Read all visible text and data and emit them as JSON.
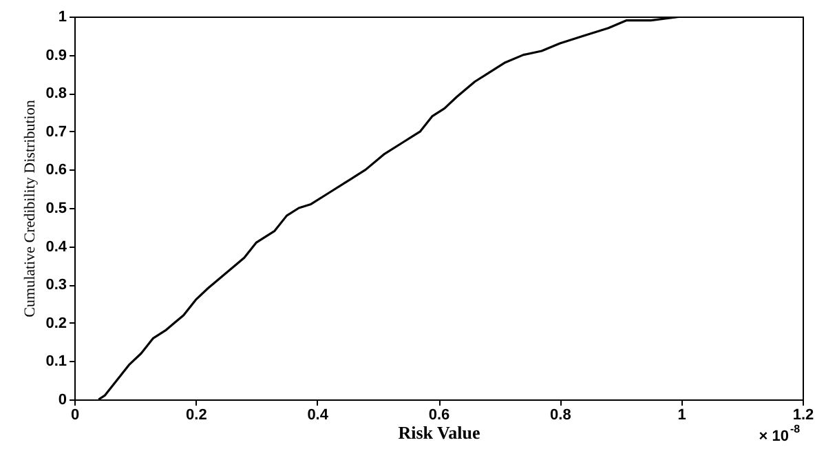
{
  "chart_data": {
    "type": "line",
    "xlabel": "Risk Value",
    "ylabel": "Cumulative Credibility Distribution",
    "annotations": [
      "× 10$^{-8}$"
    ],
    "xlim": [
      0,
      1.2
    ],
    "xticks": [
      0,
      0.2,
      0.4,
      0.6,
      0.8,
      1,
      1.2
    ],
    "ylim": [
      0,
      1
    ],
    "yticks": [
      0,
      0.1,
      0.2,
      0.3,
      0.4,
      0.5,
      0.6,
      0.7,
      0.8,
      0.9,
      1
    ],
    "grid": false,
    "marker": "none",
    "line_style": "solid",
    "x": [
      0.04,
      0.05,
      0.07,
      0.09,
      0.11,
      0.13,
      0.15,
      0.18,
      0.2,
      0.22,
      0.25,
      0.28,
      0.3,
      0.33,
      0.35,
      0.37,
      0.39,
      0.42,
      0.45,
      0.48,
      0.51,
      0.54,
      0.56,
      0.57,
      0.59,
      0.61,
      0.63,
      0.66,
      0.68,
      0.71,
      0.74,
      0.77,
      0.8,
      0.84,
      0.88,
      0.91,
      0.95,
      1.0,
      1.03
    ],
    "series": [
      {
        "color": "#000000",
        "values": [
          0,
          0.01,
          0.05,
          0.09,
          0.12,
          0.16,
          0.18,
          0.22,
          0.26,
          0.29,
          0.33,
          0.37,
          0.41,
          0.44,
          0.48,
          0.5,
          0.51,
          0.54,
          0.57,
          0.6,
          0.64,
          0.67,
          0.69,
          0.7,
          0.74,
          0.76,
          0.79,
          0.83,
          0.85,
          0.88,
          0.9,
          0.91,
          0.93,
          0.95,
          0.97,
          0.99,
          0.99,
          1.0,
          1.0
        ]
      }
    ]
  }
}
